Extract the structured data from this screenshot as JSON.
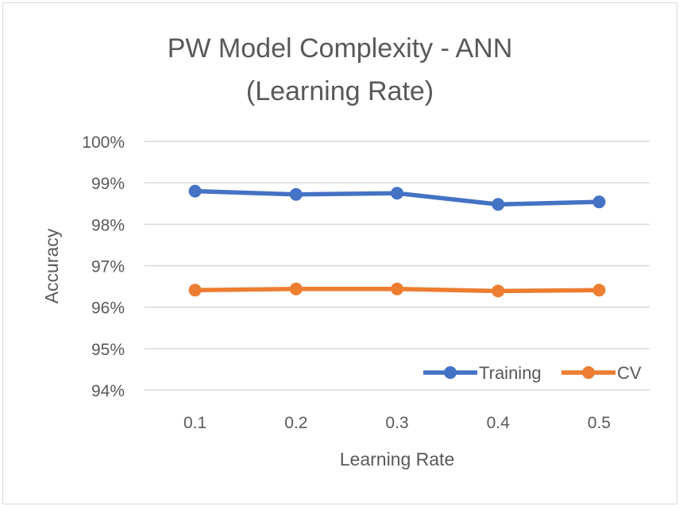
{
  "chart_data": {
    "type": "line",
    "title_lines": [
      "PW Model Complexity - ANN",
      "(Learning Rate)"
    ],
    "xlabel": "Learning Rate",
    "ylabel": "Accuracy",
    "categories": [
      "0.1",
      "0.2",
      "0.3",
      "0.4",
      "0.5"
    ],
    "yticks": [
      "94%",
      "95%",
      "96%",
      "97%",
      "98%",
      "99%",
      "100%"
    ],
    "ylim": [
      94,
      100
    ],
    "grid": true,
    "legend_position": "bottom-right",
    "series": [
      {
        "name": "Training",
        "color": "#4472c4",
        "values": [
          98.8,
          98.72,
          98.75,
          98.48,
          98.54
        ]
      },
      {
        "name": "CV",
        "color": "#ed7d31",
        "values": [
          96.41,
          96.44,
          96.44,
          96.39,
          96.41
        ]
      }
    ]
  }
}
